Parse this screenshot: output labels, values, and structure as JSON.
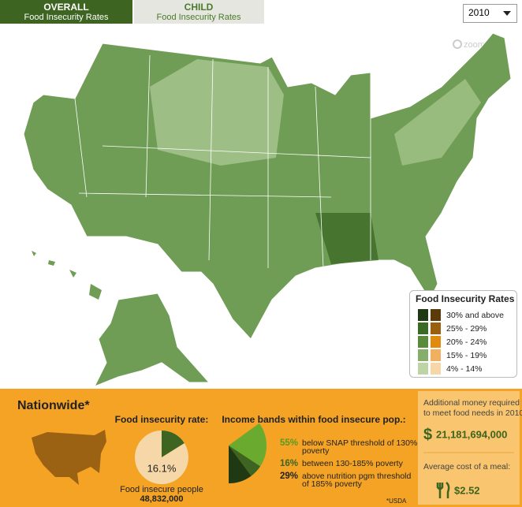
{
  "tabs": [
    {
      "title": "OVERALL",
      "subtitle": "Food Insecurity Rates"
    },
    {
      "title": "CHILD",
      "subtitle": "Food Insecurity Rates"
    }
  ],
  "year_select": "2010",
  "zoom": "zoom",
  "legend": {
    "title": "Food Insecurity Rates",
    "items": [
      "30% and above",
      "25% - 29%",
      "20% - 24%",
      "15% - 19%",
      "4% - 14%"
    ]
  },
  "panel": {
    "title": "Nationwide*",
    "rate_heading": "Food insecurity rate:",
    "rate": {
      "value": 16.1,
      "label": "16.1%"
    },
    "people_label": "Food insecure people",
    "people": "48,832,000",
    "bands_heading": "Income bands within food insecure pop.:",
    "bands": [
      {
        "value": 55,
        "label": "55%",
        "lines": [
          "below SNAP threshold of 130%",
          "poverty"
        ]
      },
      {
        "value": 16,
        "label": "16%",
        "lines": [
          "between 130-185% poverty"
        ]
      },
      {
        "value": 29,
        "label": "29%",
        "lines": [
          "above nutrition pgm threshold",
          "of 185% poverty"
        ]
      }
    ],
    "source": "*USDA",
    "money_lines": [
      "Additional money required",
      "to meet food needs in 2010"
    ],
    "currency": "$",
    "money": "21,181,694,000",
    "meal_label": "Average cost of a meal:",
    "meal_cost": "$2.52"
  }
}
